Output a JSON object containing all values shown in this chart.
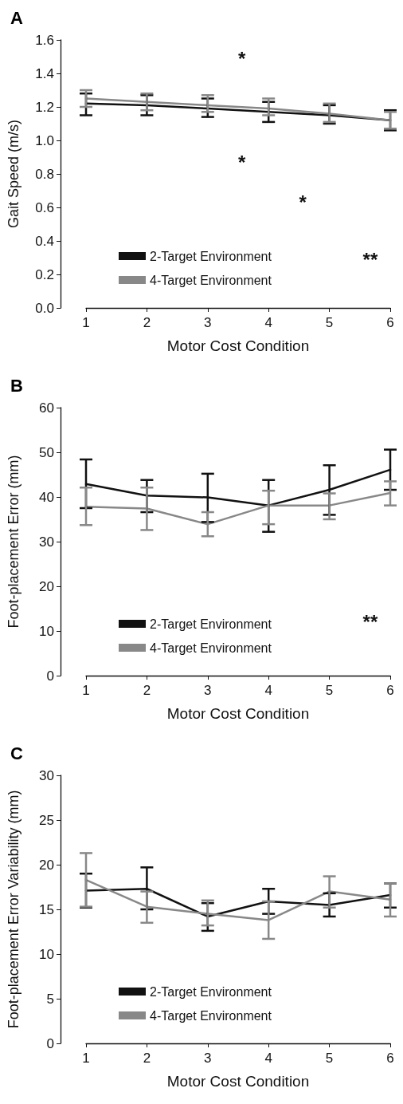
{
  "chart_data": [
    {
      "type": "line",
      "title": "A",
      "xlabel": "Motor Cost Condition",
      "ylabel": "Gait Speed (m/s)",
      "categories": [
        "1",
        "2",
        "3",
        "4",
        "5",
        "6"
      ],
      "series": [
        {
          "name": "2-Target Environment",
          "color": "#111111",
          "values": [
            1.22,
            1.21,
            1.19,
            1.17,
            1.15,
            1.12
          ],
          "errors": [
            [
              1.15,
              1.28
            ],
            [
              1.15,
              1.27
            ],
            [
              1.14,
              1.25
            ],
            [
              1.11,
              1.23
            ],
            [
              1.1,
              1.21
            ],
            [
              1.06,
              1.18
            ]
          ]
        },
        {
          "name": "4-Target Environment",
          "color": "#888888",
          "values": [
            1.25,
            1.23,
            1.21,
            1.19,
            1.16,
            1.12
          ],
          "errors": [
            [
              1.2,
              1.3
            ],
            [
              1.18,
              1.28
            ],
            [
              1.17,
              1.27
            ],
            [
              1.15,
              1.25
            ],
            [
              1.11,
              1.22
            ],
            [
              1.07,
              1.17
            ]
          ]
        }
      ],
      "ylim": [
        0,
        1.6
      ],
      "yticks": [
        {
          "value": 0,
          "label": "0.0"
        },
        0.2,
        0.4,
        0.6,
        0.8,
        {
          "value": 1,
          "label": "1.0"
        },
        1.2,
        1.4,
        1.6
      ],
      "annotations": [
        "*",
        "*",
        "*",
        "**"
      ],
      "legend": "bottom left",
      "marker": "none",
      "line_style": "solid",
      "grid": false
    },
    {
      "type": "line",
      "title": "B",
      "xlabel": "Motor Cost Condition",
      "ylabel": "Foot-placement Error (mm)",
      "categories": [
        "1",
        "2",
        "3",
        "4",
        "5",
        "6"
      ],
      "series": [
        {
          "name": "2-Target Environment",
          "color": "#111111",
          "values": [
            42.9,
            40.3,
            39.9,
            38.1,
            41.6,
            46.1
          ],
          "errors": [
            [
              37.5,
              48.4
            ],
            [
              36.6,
              43.8
            ],
            [
              34.4,
              45.2
            ],
            [
              32.2,
              43.8
            ],
            [
              36.0,
              47.1
            ],
            [
              41.6,
              50.6
            ]
          ]
        },
        {
          "name": "4-Target Environment",
          "color": "#888888",
          "values": [
            37.8,
            37.4,
            33.9,
            38.1,
            38.1,
            40.9
          ],
          "errors": [
            [
              33.7,
              42.1
            ],
            [
              32.6,
              42.1
            ],
            [
              31.2,
              36.6
            ],
            [
              33.9,
              41.4
            ],
            [
              35.0,
              40.8
            ],
            [
              38.1,
              43.5
            ]
          ]
        }
      ],
      "ylim": [
        0,
        60
      ],
      "yticks": [
        0,
        10,
        20,
        30,
        40,
        50,
        60
      ],
      "annotations": [
        "**"
      ],
      "legend": "bottom left",
      "marker": "none",
      "line_style": "solid",
      "grid": false
    },
    {
      "type": "line",
      "title": "C",
      "xlabel": "Motor Cost Condition",
      "ylabel": "Foot-placement Error Variability (mm)",
      "categories": [
        "1",
        "2",
        "3",
        "4",
        "5",
        "6"
      ],
      "series": [
        {
          "name": "2-Target Environment",
          "color": "#111111",
          "values": [
            17.1,
            17.3,
            14.2,
            15.9,
            15.5,
            16.6
          ],
          "errors": [
            [
              15.2,
              19.0
            ],
            [
              15.0,
              19.7
            ],
            [
              12.6,
              15.7
            ],
            [
              14.5,
              17.3
            ],
            [
              14.2,
              16.8
            ],
            [
              15.2,
              17.9
            ]
          ]
        },
        {
          "name": "4-Target Environment",
          "color": "#888888",
          "values": [
            18.3,
            15.3,
            14.5,
            13.8,
            17.0,
            16.1
          ],
          "errors": [
            [
              15.3,
              21.3
            ],
            [
              13.5,
              17.0
            ],
            [
              13.2,
              16.0
            ],
            [
              11.7,
              15.9
            ],
            [
              15.2,
              18.7
            ],
            [
              14.2,
              17.9
            ]
          ]
        }
      ],
      "ylim": [
        0,
        30
      ],
      "yticks": [
        0,
        5,
        10,
        15,
        20,
        25,
        30
      ],
      "legend": "bottom left",
      "marker": "none",
      "line_style": "solid",
      "grid": false
    }
  ]
}
